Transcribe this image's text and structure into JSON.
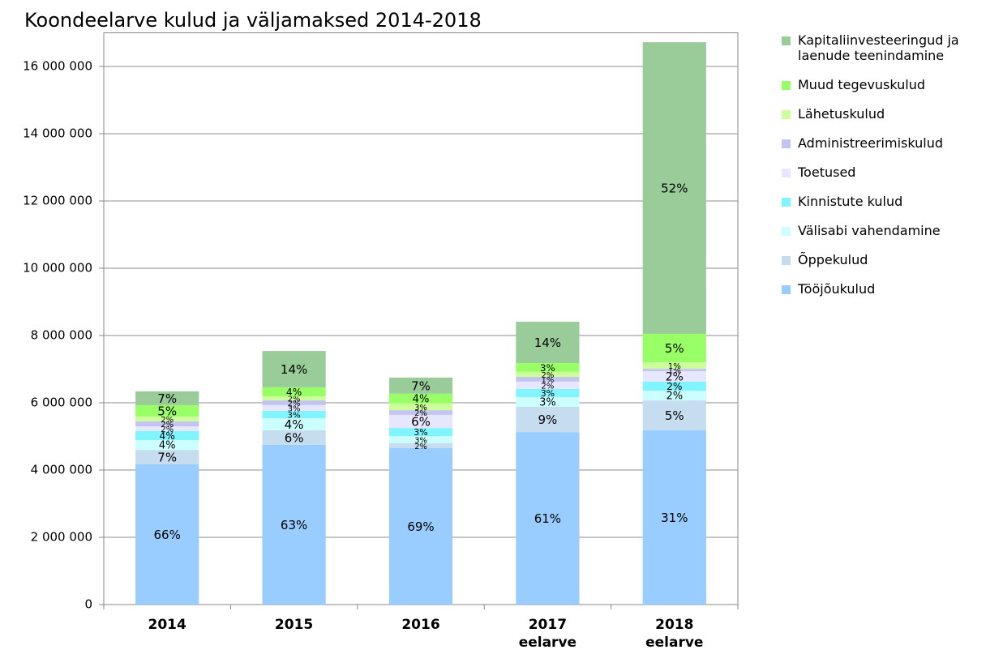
{
  "chart_data": {
    "type": "stacked_bar",
    "title": "Koondeelarve kulud ja väljamaksed 2014-2018",
    "categories": [
      "2014",
      "2015",
      "2016",
      "2017 eelarve",
      "2018 eelarve"
    ],
    "ylim": [
      0,
      17000000
    ],
    "yticks": [
      0,
      {
        "value": 2000000,
        "label": "2 000 000"
      },
      {
        "value": 4000000,
        "label": "4 000 000"
      },
      {
        "value": 6000000,
        "label": "6 000 000"
      },
      {
        "value": 8000000,
        "label": "8 000 000"
      },
      {
        "value": 10000000,
        "label": "10 000 000"
      },
      {
        "value": 12000000,
        "label": "12 000 000"
      },
      {
        "value": 14000000,
        "label": "14 000 000"
      },
      {
        "value": 16000000,
        "label": "16 000 000"
      }
    ],
    "grid": true,
    "legend": "right",
    "series": [
      {
        "name": "Tööjõukulud",
        "color": "#99ccff",
        "values": [
          4170000,
          4750000,
          4650000,
          5130000,
          5180000
        ],
        "labels": [
          "66%",
          "63%",
          "69%",
          "61%",
          "31%"
        ]
      },
      {
        "name": "Õppekulud",
        "color": "#c6dcef",
        "values": [
          430000,
          430000,
          150000,
          750000,
          890000
        ],
        "labels": [
          "7%",
          "6%",
          "2%",
          "9%",
          "5%"
        ]
      },
      {
        "name": "Välisabi vahendamine",
        "color": "#ccffff",
        "values": [
          290000,
          360000,
          210000,
          290000,
          290000
        ],
        "labels": [
          "4%",
          "4%",
          "3%",
          "3%",
          "2%"
        ]
      },
      {
        "name": "Kinnistute kulud",
        "color": "#80f4ff",
        "values": [
          270000,
          220000,
          240000,
          240000,
          270000
        ],
        "labels": [
          "4%",
          "3%",
          "3%",
          "3%",
          "2%"
        ]
      },
      {
        "name": "Toetused",
        "color": "#e6e6ff",
        "values": [
          140000,
          170000,
          390000,
          220000,
          310000
        ],
        "labels": [
          "2%",
          "3%",
          "6%",
          "2%",
          "2%"
        ]
      },
      {
        "name": "Administreerimiskulud",
        "color": "#c4c4f0",
        "values": [
          150000,
          140000,
          140000,
          140000,
          70000
        ],
        "labels": [
          "2%",
          "2%",
          "2%",
          "1%",
          "1%"
        ]
      },
      {
        "name": "Lähetuskulud",
        "color": "#ccff99",
        "values": [
          140000,
          120000,
          200000,
          150000,
          190000
        ],
        "labels": [
          "2%",
          "2%",
          "3%",
          "2%",
          "1%"
        ]
      },
      {
        "name": "Muud tegevuskulud",
        "color": "#99ff66",
        "values": [
          340000,
          270000,
          290000,
          260000,
          850000
        ],
        "labels": [
          "5%",
          "4%",
          "4%",
          "3%",
          "5%"
        ]
      },
      {
        "name": "Kapitaliinvesteeringud ja laenude teenindamine",
        "color": "#99cc99",
        "values": [
          410000,
          1080000,
          480000,
          1230000,
          8670000
        ],
        "labels": [
          "7%",
          "14%",
          "7%",
          "14%",
          "52%"
        ]
      }
    ]
  }
}
